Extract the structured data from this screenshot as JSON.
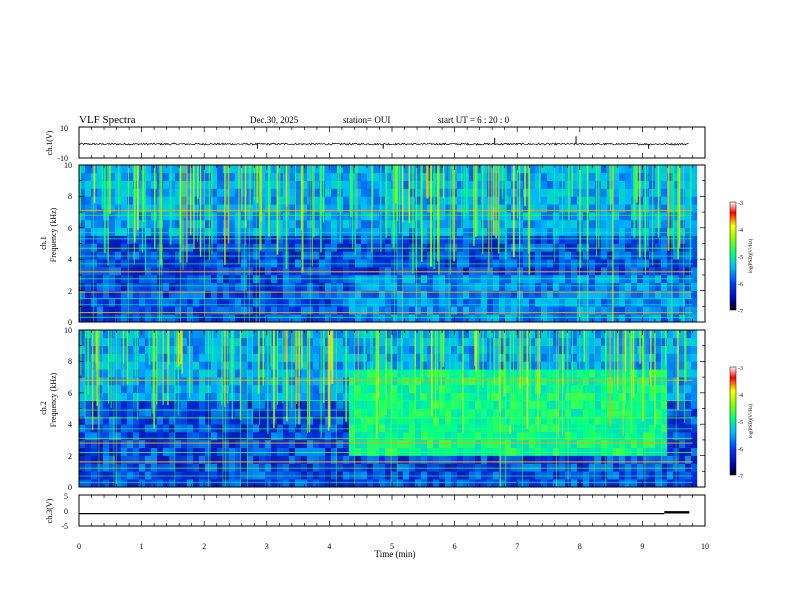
{
  "header": {
    "title": "VLF Spectra",
    "date": "Dec.30, 2025",
    "station": "station= OUI",
    "start": "start  UT  =   6  : 20 : 0"
  },
  "chart_data": [
    {
      "type": "line",
      "id": "ch1-waveform",
      "ylabel": "ch.1(V)",
      "ylim": [
        -10,
        10
      ],
      "ytick_labels": [
        "10",
        "-10"
      ],
      "xlim": [
        0,
        10
      ],
      "baseline": -1,
      "noise_amplitude": 0.6,
      "spikes": [
        {
          "t": 2.85,
          "v": -4
        },
        {
          "t": 4.86,
          "v": -4
        },
        {
          "t": 6.64,
          "v": 3
        },
        {
          "t": 7.94,
          "v": 4
        },
        {
          "t": 9.1,
          "v": -4
        }
      ],
      "signal_end_min": 9.75
    },
    {
      "type": "heatmap",
      "id": "ch1-spectrogram",
      "ylabel_top": "ch.1",
      "ylabel": "Frequency (kHz)",
      "ylim": [
        0,
        10
      ],
      "ytick_labels": [
        "0",
        "2",
        "4",
        "6",
        "8",
        "10"
      ],
      "xlim": [
        0,
        10
      ],
      "colorbar": {
        "label": "log(PSD)(V²/Hz)",
        "range": [
          -7,
          -3
        ],
        "tick_labels": [
          "-3",
          "-4",
          "-5",
          "-6",
          "-7"
        ]
      },
      "emission_lines_khz": [
        7.1,
        6.8,
        5.7,
        5.3,
        4.7,
        4.2,
        3.7,
        3.2,
        2.75,
        2.3,
        1.9,
        1.5,
        1.1,
        0.6,
        0.3
      ],
      "strong_lines_khz": [
        7.1,
        3.2,
        1.9,
        0.6
      ],
      "band_change_min": 4.3
    },
    {
      "type": "heatmap",
      "id": "ch2-spectrogram",
      "ylabel_top": "ch.2",
      "ylabel": "Frequency (kHz)",
      "ylim": [
        0,
        10
      ],
      "ytick_labels": [
        "0",
        "2",
        "4",
        "6",
        "8",
        "10"
      ],
      "xlim": [
        0,
        10
      ],
      "colorbar": {
        "label": "log(PSD)(V²/Hz)",
        "range": [
          -7,
          -3
        ],
        "tick_labels": [
          "-3",
          "-4",
          "-5",
          "-6",
          "-7"
        ]
      },
      "emission_lines_khz": [
        6.8,
        5.5,
        4.9,
        4.4,
        3.7,
        3.1,
        2.8,
        2.2,
        1.6,
        1.2,
        0.7,
        0.3
      ],
      "strong_lines_khz": [
        6.8,
        2.8,
        1.6
      ],
      "band_change_min": 4.3,
      "enhanced_band_khz": [
        2.0,
        7.0
      ],
      "enhanced_band_end_min": 9.3
    },
    {
      "type": "line",
      "id": "ch3-waveform",
      "ylabel": "ch.3(V)",
      "ylim": [
        -5,
        5
      ],
      "ytick_labels": [
        "5",
        "0",
        "-5"
      ],
      "xlim": [
        0,
        10
      ],
      "xlabel": "Time (min)",
      "xtick_labels": [
        "0",
        "1",
        "2",
        "3",
        "4",
        "5",
        "6",
        "7",
        "8",
        "9",
        "10"
      ],
      "level": -1,
      "step_min": 9.35,
      "step_level": -0.6,
      "signal_end_min": 9.75
    }
  ],
  "colors": {
    "background": "#000080",
    "axis": "#000000"
  }
}
